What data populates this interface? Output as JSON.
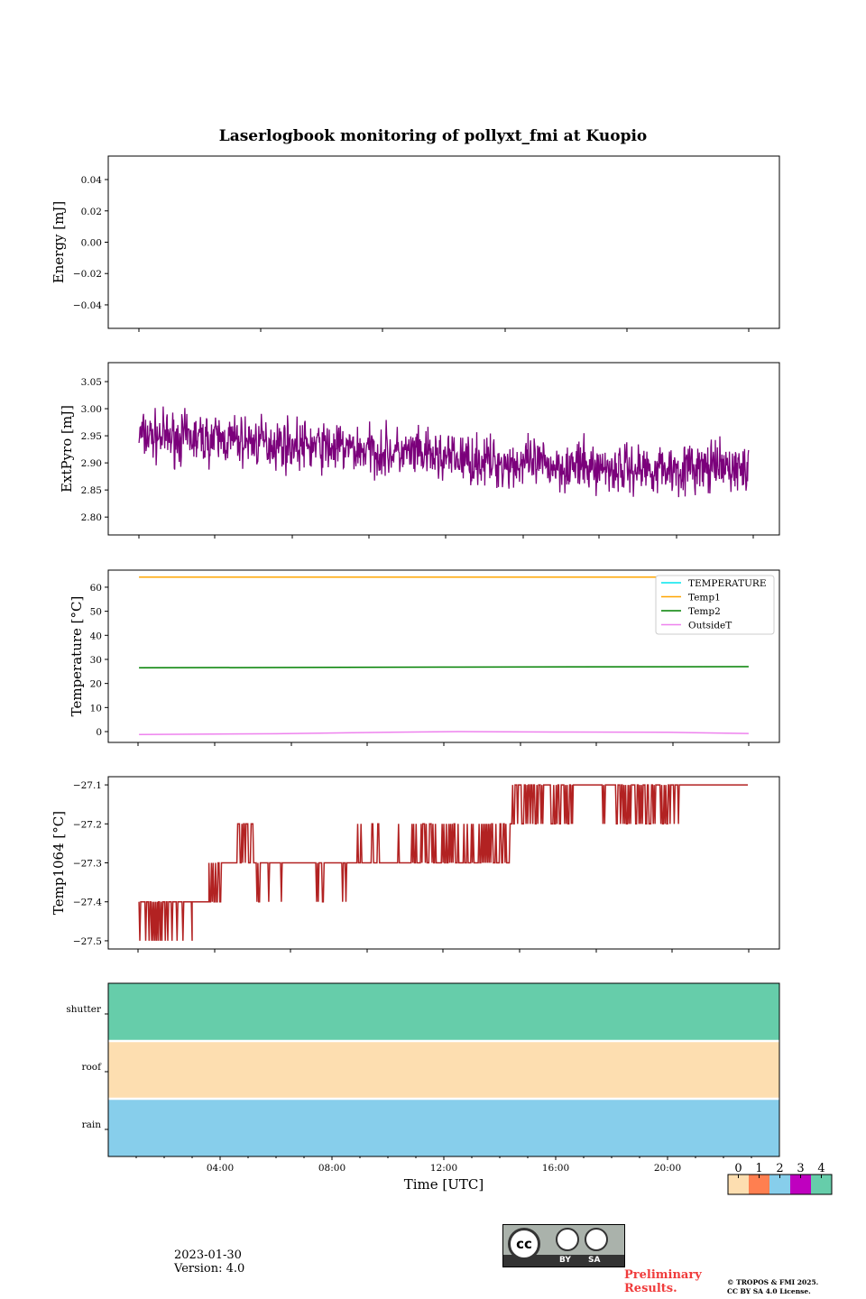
{
  "title": "Laserlogbook monitoring of pollyxt_fmi at Kuopio",
  "footer": {
    "date": "2023-01-30",
    "version": "Version: 4.0",
    "preliminary_line1": "Preliminary",
    "preliminary_line2": "Results.",
    "copyright_line1": "© TROPOS & FMI 2025.",
    "copyright_line2": "CC BY SA 4.0 License.",
    "cc_by": "BY",
    "cc_sa": "SA",
    "cc": "cc"
  },
  "chart_data": [
    {
      "type": "line",
      "ylabel": "Energy [mJ]",
      "ylim": [
        -0.055,
        0.055
      ],
      "yticks": [
        "0.04",
        "0.02",
        "0.00",
        "−0.02",
        "−0.04"
      ],
      "ytick_values": [
        0.04,
        0.02,
        0,
        -0.02,
        -0.04
      ],
      "series": []
    },
    {
      "type": "line",
      "ylabel": "ExtPyro [mJ]",
      "ylim": [
        2.767,
        3.085
      ],
      "yticks": [
        "3.05",
        "3.00",
        "2.95",
        "2.90",
        "2.85",
        "2.80"
      ],
      "ytick_values": [
        3.05,
        3.0,
        2.95,
        2.9,
        2.85,
        2.8
      ],
      "series": [
        {
          "name": "ExtPyro",
          "color": "#7b007b",
          "x_range_hours": [
            1.1,
            22.9
          ],
          "mean_profile": [
            [
              1.1,
              2.95
            ],
            [
              5,
              2.94
            ],
            [
              10,
              2.92
            ],
            [
              14,
              2.9
            ],
            [
              18,
              2.89
            ],
            [
              22.9,
              2.89
            ]
          ],
          "noise": 0.035,
          "min": 2.78,
          "max": 3.07
        }
      ]
    },
    {
      "type": "line",
      "ylabel": "Temperature [°C]",
      "ylim": [
        -4.5,
        67.1
      ],
      "yticks": [
        "60",
        "50",
        "40",
        "30",
        "20",
        "10",
        "0"
      ],
      "ytick_values": [
        60,
        50,
        40,
        30,
        20,
        10,
        0
      ],
      "legend": {
        "placement": "top-right",
        "entries": [
          "TEMPERATURE",
          "Temp1",
          "Temp2",
          "OutsideT"
        ]
      },
      "series": [
        {
          "name": "TEMPERATURE",
          "color": "#00e5ee",
          "points": []
        },
        {
          "name": "Temp1",
          "color": "#ffa500",
          "points": [
            [
              1.1,
              64.2
            ],
            [
              22.9,
              64.2
            ]
          ]
        },
        {
          "name": "Temp2",
          "color": "#008000",
          "points": [
            [
              1.1,
              26.5
            ],
            [
              12,
              26.8
            ],
            [
              22.9,
              27.0
            ]
          ]
        },
        {
          "name": "OutsideT",
          "color": "#ee82ee",
          "points": [
            [
              1.1,
              -1.2
            ],
            [
              6,
              -0.9
            ],
            [
              10,
              -0.3
            ],
            [
              12.5,
              0
            ],
            [
              16,
              -0.2
            ],
            [
              20,
              -0.3
            ],
            [
              22.9,
              -0.8
            ]
          ]
        }
      ]
    },
    {
      "type": "line",
      "ylabel": "Temp1064 [°C]",
      "ylim": [
        -27.521,
        -27.079
      ],
      "yticks": [
        "−27.1",
        "−27.2",
        "−27.3",
        "−27.4",
        "−27.5"
      ],
      "ytick_values": [
        -27.1,
        -27.2,
        -27.3,
        -27.4,
        -27.5
      ],
      "series": [
        {
          "name": "Temp1064",
          "color": "#b22222",
          "segments": [
            {
              "from": 1.1,
              "to": 1.8,
              "base": -27.4,
              "alt": -27.5,
              "p": 0.5
            },
            {
              "from": 1.8,
              "to": 3.0,
              "base": -27.4,
              "alt": -27.5,
              "p": 0.12
            },
            {
              "from": 3.0,
              "to": 3.6,
              "base": -27.4,
              "alt": -27.4,
              "p": 0
            },
            {
              "from": 3.6,
              "to": 4.1,
              "base": -27.3,
              "alt": -27.4,
              "p": 0.5
            },
            {
              "from": 4.1,
              "to": 4.6,
              "base": -27.3,
              "alt": -27.3,
              "p": 0
            },
            {
              "from": 4.6,
              "to": 5.2,
              "base": -27.3,
              "alt": -27.2,
              "p": 0.5
            },
            {
              "from": 5.2,
              "to": 8.8,
              "base": -27.3,
              "alt": -27.4,
              "p": 0.08
            },
            {
              "from": 8.8,
              "to": 10.2,
              "base": -27.3,
              "alt": -27.2,
              "p": 0.15
            },
            {
              "from": 10.2,
              "to": 14.4,
              "base": -27.3,
              "alt": -27.2,
              "p": 0.3
            },
            {
              "from": 14.4,
              "to": 16.6,
              "base": -27.1,
              "alt": -27.2,
              "p": 0.35
            },
            {
              "from": 16.6,
              "to": 17.6,
              "base": -27.1,
              "alt": -27.2,
              "p": 0.05
            },
            {
              "from": 17.6,
              "to": 20.5,
              "base": -27.1,
              "alt": -27.2,
              "p": 0.45
            },
            {
              "from": 20.5,
              "to": 22.9,
              "base": -27.1,
              "alt": -27.1,
              "p": 0
            }
          ]
        }
      ]
    },
    {
      "type": "heatmap",
      "xlabel": "Time [UTC]",
      "xlim_hours": [
        0,
        24
      ],
      "xticks": [
        "04:00",
        "08:00",
        "12:00",
        "16:00",
        "20:00"
      ],
      "xtick_hours": [
        4,
        8,
        12,
        16,
        20
      ],
      "rows": [
        {
          "label": "shutter",
          "value": 4
        },
        {
          "label": "roof",
          "value": 0
        },
        {
          "label": "rain",
          "value": 2
        }
      ],
      "colorbar": {
        "ticks": [
          "0",
          "1",
          "2",
          "3",
          "4"
        ],
        "colors": [
          "#fddeb0",
          "#ff7f50",
          "#87ceeb",
          "#bf00bf",
          "#66cdaa"
        ]
      }
    }
  ]
}
